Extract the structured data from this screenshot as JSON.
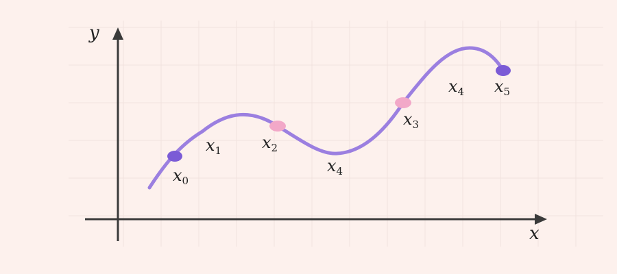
{
  "axes": {
    "x_label": "x",
    "y_label": "y"
  },
  "colors": {
    "background": "#fdf1ed",
    "curve": "#9b7fe0",
    "point_primary": "#7b5bd6",
    "point_secondary": "#f2a8c8",
    "axis": "#3a3a3a"
  },
  "points": [
    {
      "base": "x",
      "sub": "0",
      "marker": "primary"
    },
    {
      "base": "x",
      "sub": "1",
      "marker": "none"
    },
    {
      "base": "x",
      "sub": "2",
      "marker": "secondary"
    },
    {
      "base": "x",
      "sub": "4",
      "marker": "none"
    },
    {
      "base": "x",
      "sub": "3",
      "marker": "secondary"
    },
    {
      "base": "x",
      "sub": "4",
      "marker": "none"
    },
    {
      "base": "x",
      "sub": "5",
      "marker": "primary"
    }
  ]
}
